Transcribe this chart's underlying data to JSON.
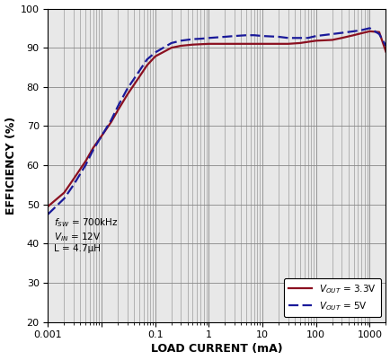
{
  "xlabel": "LOAD CURRENT (mA)",
  "ylabel": "EFFICIENCY (%)",
  "ylim": [
    20,
    100
  ],
  "yticks": [
    20,
    30,
    40,
    50,
    60,
    70,
    80,
    90,
    100
  ],
  "background_color": "#e8e8e8",
  "line_33v_color": "#8B1020",
  "line_5v_color": "#1a1a9a",
  "vout_33v_x": [
    0.001,
    0.002,
    0.003,
    0.005,
    0.007,
    0.01,
    0.015,
    0.02,
    0.03,
    0.05,
    0.07,
    0.1,
    0.2,
    0.3,
    0.5,
    0.7,
    1.0,
    2.0,
    3.0,
    5.0,
    7.0,
    10.0,
    20.0,
    30.0,
    50.0,
    70.0,
    100.0,
    200.0,
    300.0,
    500.0,
    700.0,
    1000.0,
    1500.0,
    2000.0
  ],
  "vout_33v_y": [
    49.5,
    53.0,
    56.5,
    61.0,
    64.5,
    67.5,
    71.0,
    74.0,
    78.0,
    82.5,
    85.5,
    87.8,
    90.0,
    90.5,
    90.8,
    90.9,
    91.0,
    91.0,
    91.0,
    91.0,
    91.0,
    91.0,
    91.0,
    91.0,
    91.2,
    91.5,
    91.8,
    92.0,
    92.5,
    93.2,
    93.7,
    94.2,
    94.0,
    89.0
  ],
  "vout_5v_x": [
    0.001,
    0.002,
    0.003,
    0.005,
    0.007,
    0.01,
    0.015,
    0.02,
    0.03,
    0.05,
    0.07,
    0.1,
    0.2,
    0.3,
    0.5,
    0.7,
    1.0,
    2.0,
    3.0,
    5.0,
    7.0,
    10.0,
    20.0,
    30.0,
    50.0,
    70.0,
    100.0,
    200.0,
    300.0,
    500.0,
    700.0,
    1000.0,
    1500.0,
    2000.0
  ],
  "vout_5v_y": [
    47.5,
    51.5,
    55.0,
    60.0,
    64.0,
    67.5,
    71.5,
    75.0,
    79.5,
    84.0,
    87.0,
    88.8,
    91.2,
    91.8,
    92.2,
    92.3,
    92.5,
    92.8,
    93.0,
    93.2,
    93.2,
    93.0,
    92.8,
    92.5,
    92.5,
    92.5,
    93.0,
    93.5,
    93.8,
    94.2,
    94.5,
    95.0,
    93.5,
    90.5
  ]
}
